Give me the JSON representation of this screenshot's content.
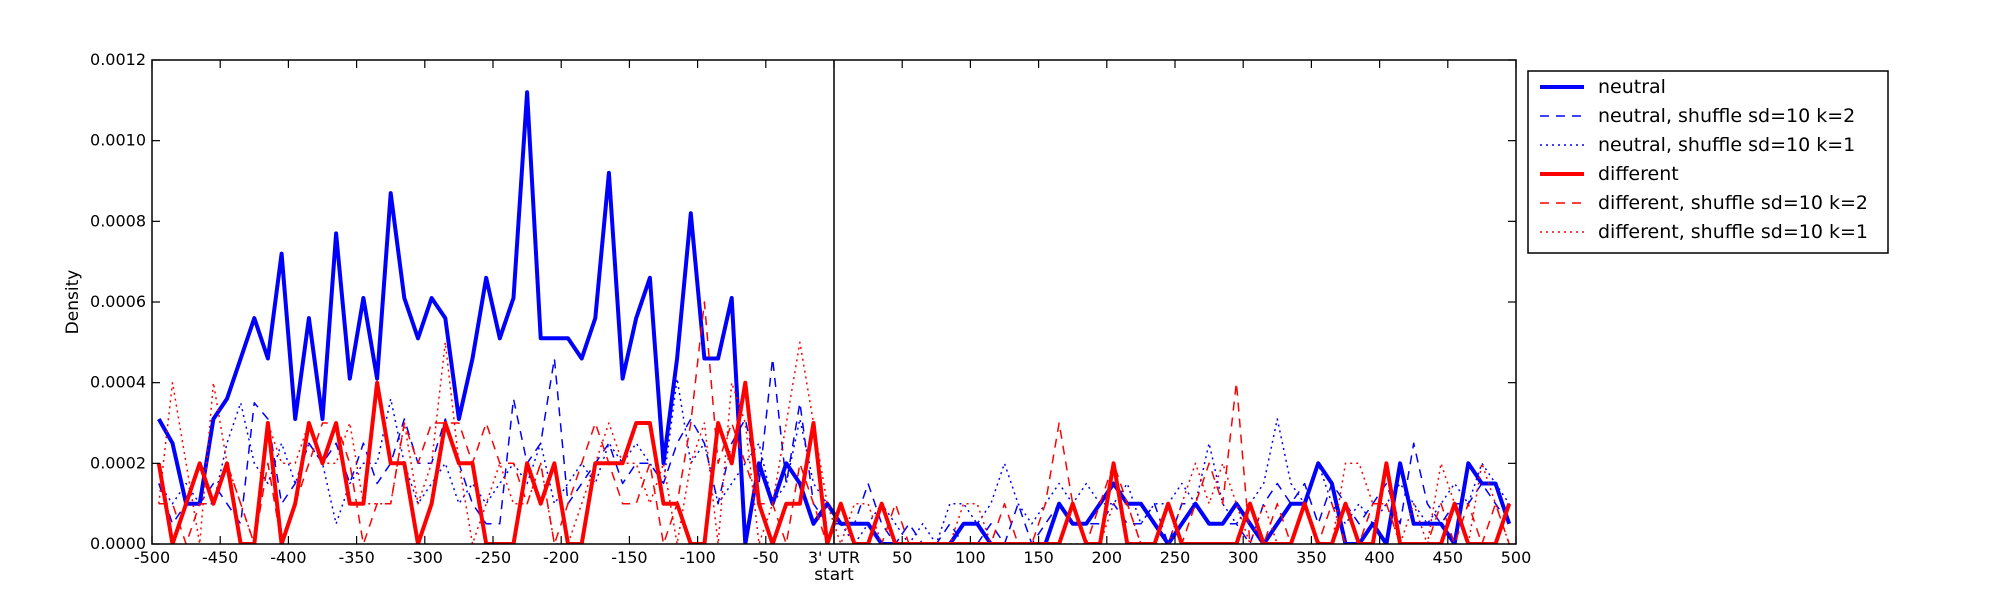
{
  "chart_data": {
    "type": "line",
    "title": "",
    "xlabel": "start",
    "ylabel": "Density",
    "xlim": [
      -500,
      500
    ],
    "ylim": [
      0,
      0.0012
    ],
    "grid": false,
    "legend_position": "outside-top-right",
    "vertical_marker": {
      "x": 0,
      "label": "3' UTR"
    },
    "x_ticks": [
      -500,
      -450,
      -400,
      -350,
      -300,
      -250,
      -200,
      -150,
      -100,
      -50,
      0,
      50,
      100,
      150,
      200,
      250,
      300,
      350,
      400,
      450,
      500
    ],
    "x_tick_labels": [
      "-500",
      "-450",
      "-400",
      "-350",
      "-300",
      "-250",
      "-200",
      "-150",
      "-100",
      "-50",
      "3' UTR",
      "50",
      "100",
      "150",
      "200",
      "250",
      "300",
      "350",
      "400",
      "450",
      "500"
    ],
    "y_ticks": [
      0,
      0.0002,
      0.0004,
      0.0006,
      0.0008,
      0.001,
      0.0012
    ],
    "y_tick_labels": [
      "0.0000",
      "0.0002",
      "0.0004",
      "0.0006",
      "0.0008",
      "0.0010",
      "0.0012"
    ],
    "x": [
      -495,
      -485,
      -475,
      -465,
      -455,
      -445,
      -435,
      -425,
      -415,
      -405,
      -395,
      -385,
      -375,
      -365,
      -355,
      -345,
      -335,
      -325,
      -315,
      -305,
      -295,
      -285,
      -275,
      -265,
      -255,
      -245,
      -235,
      -225,
      -215,
      -205,
      -195,
      -185,
      -175,
      -165,
      -155,
      -145,
      -135,
      -125,
      -115,
      -105,
      -95,
      -85,
      -75,
      -65,
      -55,
      -45,
      -35,
      -25,
      -15,
      -5,
      5,
      15,
      25,
      35,
      45,
      55,
      65,
      75,
      85,
      95,
      105,
      115,
      125,
      135,
      145,
      155,
      165,
      175,
      185,
      195,
      205,
      215,
      225,
      235,
      245,
      255,
      265,
      275,
      285,
      295,
      305,
      315,
      325,
      335,
      345,
      355,
      365,
      375,
      385,
      395,
      405,
      415,
      425,
      435,
      445,
      455,
      465,
      475,
      485,
      495
    ],
    "series": [
      {
        "name": "neutral",
        "color": "#0000ff",
        "style": "solid",
        "width": 4,
        "values": [
          0.00031,
          0.00025,
          0.0001,
          0.0001,
          0.00031,
          0.00036,
          0.00046,
          0.00056,
          0.00046,
          0.00072,
          0.00031,
          0.00056,
          0.00031,
          0.00077,
          0.00041,
          0.00061,
          0.00041,
          0.00087,
          0.00061,
          0.00051,
          0.00061,
          0.00056,
          0.00031,
          0.00046,
          0.00066,
          0.00051,
          0.00061,
          0.00112,
          0.00051,
          0.00051,
          0.00051,
          0.00046,
          0.00056,
          0.00092,
          0.00041,
          0.00056,
          0.00066,
          0.0002,
          0.00046,
          0.00082,
          0.00046,
          0.00046,
          0.00061,
          0.0,
          0.0002,
          0.0001,
          0.0002,
          0.00015,
          5e-05,
          0.0001,
          5e-05,
          5e-05,
          5e-05,
          0.0,
          0.0,
          0.0,
          0.0,
          0.0,
          0.0,
          5e-05,
          5e-05,
          0.0,
          0.0,
          0.0,
          0.0,
          0.0,
          0.0001,
          5e-05,
          5e-05,
          0.0001,
          0.00015,
          0.0001,
          0.0001,
          5e-05,
          0.0,
          5e-05,
          0.0001,
          5e-05,
          5e-05,
          0.0001,
          5e-05,
          0.0,
          5e-05,
          0.0001,
          0.0001,
          0.0002,
          0.00015,
          0.0,
          0.0,
          5e-05,
          0.0,
          0.0002,
          5e-05,
          5e-05,
          5e-05,
          0.0,
          0.0002,
          0.00015,
          0.00015,
          5e-05
        ]
      },
      {
        "name": "neutral, shuffle sd=10 k=2",
        "color": "#0000ff",
        "style": "dashed",
        "width": 1.5,
        "values": [
          0.00015,
          5e-05,
          0.0001,
          0.0001,
          0.00015,
          0.0001,
          5e-05,
          0.00035,
          0.00031,
          0.0001,
          0.00015,
          0.00025,
          0.0002,
          0.00025,
          0.00015,
          0.00025,
          0.00015,
          0.0002,
          0.00031,
          0.0002,
          0.0002,
          0.00031,
          0.0002,
          0.0001,
          5e-05,
          5e-05,
          0.00036,
          0.0002,
          0.00025,
          0.00046,
          0.0001,
          0.00015,
          0.0002,
          0.00025,
          0.00015,
          0.0002,
          0.0002,
          0.00015,
          0.00025,
          0.00031,
          0.00025,
          0.0001,
          0.00025,
          0.00031,
          0.00015,
          0.00046,
          0.00015,
          0.00035,
          0.0001,
          5e-05,
          5e-05,
          5e-05,
          0.00015,
          5e-05,
          0.0,
          5e-05,
          0.0,
          0.0,
          5e-05,
          0.0,
          0.0,
          5e-05,
          0.0,
          0.0001,
          0.0,
          5e-05,
          0.0001,
          5e-05,
          5e-05,
          5e-05,
          0.0001,
          5e-05,
          5e-05,
          0.0001,
          0.0,
          0.0001,
          0.0001,
          5e-05,
          5e-05,
          5e-05,
          0.0,
          0.0001,
          0.00015,
          0.0001,
          0.00015,
          5e-05,
          0.00015,
          0.0001,
          5e-05,
          0.0001,
          0.00015,
          5e-05,
          0.00025,
          0.0001,
          5e-05,
          0.0001,
          0.0001,
          0.00015,
          0.0001,
          5e-05
        ]
      },
      {
        "name": "neutral, shuffle sd=10 k=1",
        "color": "#0000ff",
        "style": "dotted",
        "width": 1.5,
        "values": [
          0.00015,
          0.0001,
          0.00015,
          0.0001,
          0.0001,
          0.00025,
          0.00035,
          0.0002,
          0.00015,
          0.00025,
          0.00015,
          0.00025,
          0.0002,
          5e-05,
          0.00015,
          0.0002,
          0.0002,
          0.00036,
          0.0002,
          0.0001,
          0.00015,
          0.0002,
          0.0001,
          0.00015,
          0.0001,
          0.00015,
          0.0002,
          0.00015,
          0.00025,
          0.0001,
          0.00015,
          0.0002,
          0.00015,
          0.00025,
          0.0002,
          0.00025,
          0.0002,
          0.00015,
          0.00041,
          0.0002,
          0.00025,
          0.0001,
          0.00015,
          0.0002,
          0.00025,
          0.0001,
          0.00015,
          0.00031,
          0.00015,
          0.0001,
          5e-05,
          0.0,
          5e-05,
          0.0001,
          5e-05,
          0.0,
          5e-05,
          0.0,
          0.0001,
          0.0001,
          5e-05,
          0.0001,
          0.0002,
          0.0001,
          5e-05,
          0.0001,
          0.00015,
          0.0001,
          0.00015,
          0.0001,
          0.0001,
          0.00015,
          5e-05,
          0.0001,
          0.0001,
          0.00015,
          0.0001,
          0.00025,
          0.0001,
          5e-05,
          0.0001,
          0.00015,
          0.00031,
          0.00015,
          0.0001,
          0.0002,
          0.0001,
          5e-05,
          0.0001,
          5e-05,
          0.0001,
          0.00015,
          0.0001,
          5e-05,
          0.0001,
          0.00015,
          0.0001,
          0.0002,
          0.00015,
          0.0001
        ]
      },
      {
        "name": "different",
        "color": "#ff0000",
        "style": "solid",
        "width": 4,
        "values": [
          0.0002,
          0.0,
          0.0001,
          0.0002,
          0.0001,
          0.0002,
          0.0,
          0.0,
          0.0003,
          0.0,
          0.0001,
          0.0003,
          0.0002,
          0.0003,
          0.0001,
          0.0001,
          0.0004,
          0.0002,
          0.0002,
          0.0,
          0.0001,
          0.0003,
          0.0002,
          0.0002,
          0.0,
          0.0,
          0.0,
          0.0002,
          0.0001,
          0.0002,
          0.0,
          0.0,
          0.0002,
          0.0002,
          0.0002,
          0.0003,
          0.0003,
          0.0001,
          0.0001,
          0.0,
          0.0,
          0.0003,
          0.0002,
          0.0004,
          0.0001,
          0.0,
          0.0001,
          0.0001,
          0.0003,
          0.0,
          0.0001,
          0.0,
          0.0,
          0.0001,
          0.0,
          0.0,
          0.0,
          0.0,
          0.0,
          0.0,
          0.0,
          0.0,
          0.0,
          0.0,
          0.0,
          0.0,
          0.0,
          0.0001,
          0.0,
          0.0,
          0.0002,
          0.0,
          0.0,
          0.0,
          0.0001,
          0.0,
          0.0,
          0.0,
          0.0,
          0.0,
          0.0001,
          0.0,
          0.0,
          0.0,
          0.0001,
          0.0,
          0.0,
          0.0001,
          0.0,
          0.0,
          0.0002,
          0.0,
          0.0,
          0.0,
          0.0,
          0.0001,
          0.0,
          0.0,
          0.0,
          0.0001
        ]
      },
      {
        "name": "different, shuffle sd=10 k=2",
        "color": "#ff0000",
        "style": "dashed",
        "width": 1.5,
        "values": [
          0.0001,
          0.0001,
          0.0,
          0.0001,
          0.0001,
          0.0002,
          0.0001,
          0.0,
          0.0002,
          0.0,
          0.0001,
          0.0002,
          0.0003,
          0.0003,
          0.0002,
          0.0,
          0.0001,
          0.0001,
          0.0003,
          0.0002,
          0.0003,
          0.0003,
          0.0003,
          0.0002,
          0.0003,
          0.0002,
          0.0002,
          0.0001,
          0.0002,
          0.0,
          0.0001,
          0.0002,
          0.0003,
          0.0002,
          0.0001,
          0.0001,
          0.0002,
          0.0,
          0.0001,
          0.0003,
          0.0006,
          0.0002,
          0.0003,
          0.0002,
          0.0001,
          0.0001,
          0.0,
          0.0002,
          0.0001,
          0.0,
          0.0001,
          0.0,
          0.0,
          0.0,
          0.0001,
          0.0,
          0.0,
          0.0,
          0.0,
          0.0,
          0.0,
          0.0,
          0.0001,
          0.0,
          0.0,
          0.0001,
          0.0003,
          0.0001,
          0.0,
          0.0001,
          0.0002,
          0.0001,
          0.0,
          0.0,
          0.0001,
          0.0,
          0.0001,
          0.0002,
          0.0001,
          0.0004,
          0.0,
          0.0,
          0.0001,
          0.0,
          0.0001,
          0.0,
          0.0001,
          0.0,
          0.0,
          0.0001,
          0.0001,
          0.0,
          0.0,
          0.0,
          0.0001,
          0.0,
          0.0001,
          0.0,
          0.0001,
          0.0
        ]
      },
      {
        "name": "different, shuffle sd=10 k=1",
        "color": "#ff0000",
        "style": "dotted",
        "width": 1.5,
        "values": [
          0.0001,
          0.0004,
          0.0002,
          0.0,
          0.0004,
          0.0002,
          0.0001,
          0.0,
          0.0003,
          0.0002,
          0.0002,
          0.0003,
          0.0002,
          0.0002,
          0.0003,
          0.0001,
          0.0001,
          0.0001,
          0.0003,
          0.0001,
          0.0002,
          0.0005,
          0.0002,
          0.0,
          0.0001,
          0.0002,
          0.0001,
          0.0001,
          0.0002,
          0.0,
          0.0,
          0.0001,
          0.0002,
          0.0003,
          0.0002,
          0.0002,
          0.0001,
          0.0002,
          0.0,
          0.0002,
          0.0003,
          0.0,
          0.0004,
          0.0003,
          0.0,
          0.0001,
          0.0003,
          0.0005,
          0.0003,
          0.0001,
          0.0,
          0.0001,
          0.0001,
          0.0,
          0.0,
          0.0,
          0.0,
          0.0,
          0.0,
          0.0001,
          0.0001,
          0.0,
          0.0,
          0.0,
          0.0,
          0.0,
          0.0,
          0.0,
          0.0,
          0.0,
          0.0001,
          0.0001,
          0.0,
          0.0,
          0.0,
          0.0001,
          0.0002,
          0.0001,
          0.0002,
          0.0001,
          0.0,
          0.0001,
          0.0,
          0.0,
          0.0001,
          0.0,
          0.0,
          0.0002,
          0.0002,
          0.0001,
          0.0001,
          0.0,
          0.0001,
          0.0,
          0.0002,
          0.0001,
          0.0,
          0.0002,
          0.0001,
          0.0
        ]
      }
    ]
  }
}
